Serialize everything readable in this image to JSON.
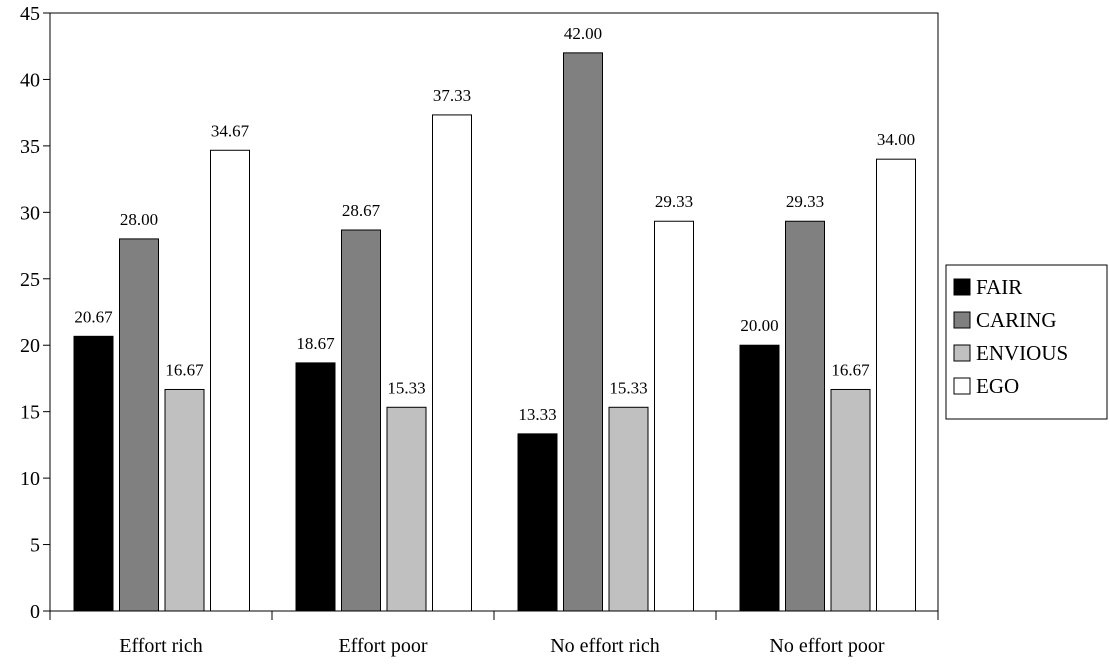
{
  "chart_data": {
    "type": "bar",
    "categories": [
      "Effort rich",
      "Effort poor",
      "No effort rich",
      "No effort poor"
    ],
    "series": [
      {
        "name": "FAIR",
        "values": [
          20.67,
          18.67,
          13.33,
          20.0
        ],
        "color": "#000000"
      },
      {
        "name": "CARING",
        "values": [
          28.0,
          28.67,
          42.0,
          29.33
        ],
        "color": "#808080"
      },
      {
        "name": "ENVIOUS",
        "values": [
          16.67,
          15.33,
          15.33,
          16.67
        ],
        "color": "#c0c0c0"
      },
      {
        "name": "EGO",
        "values": [
          34.67,
          37.33,
          29.33,
          34.0
        ],
        "color": "#ffffff"
      }
    ],
    "ylim": [
      0,
      45
    ],
    "yticks": [
      "0",
      "5",
      "10",
      "15",
      "20",
      "25",
      "30",
      "35",
      "40",
      "45"
    ],
    "data_labels": true,
    "grid": false,
    "legend": "right",
    "title": "",
    "xlabel": "",
    "ylabel": ""
  }
}
